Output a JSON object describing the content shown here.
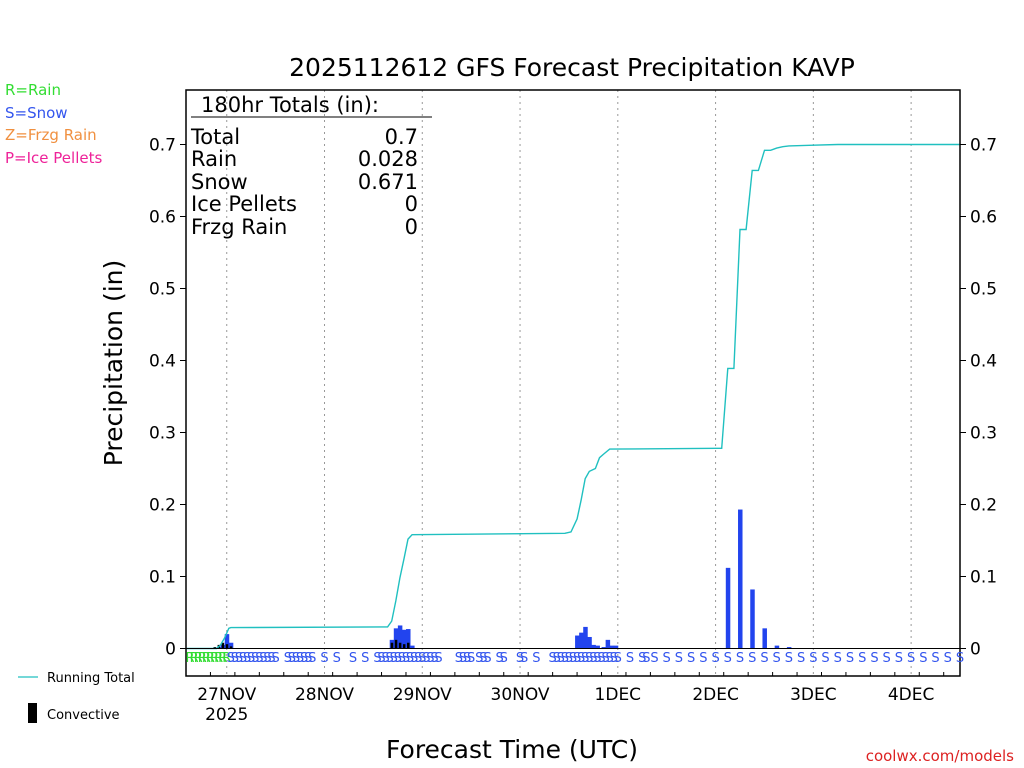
{
  "chart_data": {
    "type": "bar",
    "title": "2025112612 GFS Forecast Precipitation KAVP",
    "xlabel": "Forecast Time (UTC)",
    "ylabel": "Precipitation (in)",
    "ylim": [
      0,
      0.77
    ],
    "yticks": [
      0,
      0.1,
      0.2,
      0.3,
      0.4,
      0.5,
      0.6,
      0.7
    ],
    "ytick_labels": [
      "0",
      "0.1",
      "0.2",
      "0.3",
      "0.4",
      "0.5",
      "0.6",
      "0.7"
    ],
    "xlim_hours": [
      -10,
      180
    ],
    "x_unit": "hours after 2025-11-27 00 UTC",
    "xticks": [
      {
        "hour": 0,
        "label": "27NOV",
        "sublabel": "2025"
      },
      {
        "hour": 24,
        "label": "28NOV",
        "sublabel": ""
      },
      {
        "hour": 48,
        "label": "29NOV",
        "sublabel": ""
      },
      {
        "hour": 72,
        "label": "30NOV",
        "sublabel": ""
      },
      {
        "hour": 96,
        "label": "1DEC",
        "sublabel": ""
      },
      {
        "hour": 120,
        "label": "2DEC",
        "sublabel": ""
      },
      {
        "hour": 144,
        "label": "3DEC",
        "sublabel": ""
      },
      {
        "hour": 168,
        "label": "4DEC",
        "sublabel": ""
      }
    ],
    "grid": "dotted vertical at day boundaries",
    "legend": {
      "left_types": [
        "R=Rain",
        "S=Snow",
        "Z=Frzg Rain",
        "P=Ice Pellets"
      ],
      "left_type_colors": [
        "#33dd33",
        "#3355ee",
        "#f09040",
        "#ee2299"
      ],
      "bottom": [
        "Running Total",
        "Convective"
      ]
    },
    "totals": {
      "header": "180hr Totals (in):",
      "rows": [
        {
          "label": "Total",
          "value": "0.7"
        },
        {
          "label": "Rain",
          "value": "0.028"
        },
        {
          "label": "Snow",
          "value": "0.671"
        },
        {
          "label": "Ice Pellets",
          "value": "0"
        },
        {
          "label": "Frzg Rain",
          "value": "0"
        }
      ]
    },
    "series": [
      {
        "name": "Period Precipitation",
        "color": "#2244ee",
        "points": [
          [
            -2,
            0.002
          ],
          [
            -1,
            0.005
          ],
          [
            0,
            0.02
          ],
          [
            1,
            0.008
          ],
          [
            40.5,
            0.012
          ],
          [
            41.5,
            0.028
          ],
          [
            42.5,
            0.032
          ],
          [
            43.5,
            0.026
          ],
          [
            44.5,
            0.027
          ],
          [
            45.5,
            0.004
          ],
          [
            86,
            0.018
          ],
          [
            87,
            0.022
          ],
          [
            88,
            0.03
          ],
          [
            89,
            0.016
          ],
          [
            90,
            0.005
          ],
          [
            91,
            0.004
          ],
          [
            92.5,
            0.002
          ],
          [
            93.5,
            0.012
          ],
          [
            94.5,
            0.004
          ],
          [
            95.5,
            0.004
          ],
          [
            123,
            0.112
          ],
          [
            126,
            0.193
          ],
          [
            129,
            0.082
          ],
          [
            132,
            0.028
          ],
          [
            135,
            0.004
          ],
          [
            138,
            0.002
          ]
        ]
      },
      {
        "name": "Convective",
        "color": "#000000",
        "points": [
          [
            -3,
            0.002
          ],
          [
            -2,
            0.005
          ],
          [
            -1,
            0.008
          ],
          [
            0,
            0.006
          ],
          [
            1,
            0.003
          ],
          [
            40.5,
            0.008
          ],
          [
            41.5,
            0.012
          ],
          [
            42.5,
            0.008
          ],
          [
            43.5,
            0.006
          ],
          [
            44.5,
            0.008
          ]
        ]
      },
      {
        "name": "Running Total",
        "color": "#20c0c0",
        "points": [
          [
            -10,
            0
          ],
          [
            -2.5,
            0
          ],
          [
            -1.5,
            0.005
          ],
          [
            -0.5,
            0.015
          ],
          [
            0.5,
            0.028
          ],
          [
            1,
            0.029
          ],
          [
            39.5,
            0.03
          ],
          [
            40.5,
            0.038
          ],
          [
            41.5,
            0.066
          ],
          [
            42.5,
            0.098
          ],
          [
            43.5,
            0.124
          ],
          [
            44.5,
            0.152
          ],
          [
            45.5,
            0.158
          ],
          [
            83,
            0.16
          ],
          [
            84.5,
            0.162
          ],
          [
            86,
            0.18
          ],
          [
            87,
            0.206
          ],
          [
            88,
            0.236
          ],
          [
            89,
            0.246
          ],
          [
            90.5,
            0.25
          ],
          [
            91.5,
            0.265
          ],
          [
            92.5,
            0.27
          ],
          [
            94,
            0.277
          ],
          [
            120,
            0.278
          ],
          [
            121.5,
            0.278
          ],
          [
            123,
            0.389
          ],
          [
            124.5,
            0.389
          ],
          [
            126,
            0.582
          ],
          [
            127.5,
            0.582
          ],
          [
            129,
            0.664
          ],
          [
            130.5,
            0.664
          ],
          [
            132,
            0.692
          ],
          [
            133.5,
            0.692
          ],
          [
            135,
            0.695
          ],
          [
            136.5,
            0.697
          ],
          [
            138,
            0.698
          ],
          [
            144,
            0.699
          ],
          [
            150,
            0.7
          ],
          [
            180,
            0.7
          ]
        ]
      }
    ],
    "ptype_strip": [
      {
        "start": -11,
        "end": 0.5,
        "step": 1,
        "letter": "R",
        "color": "#33dd33"
      },
      {
        "start": 1,
        "end": 12,
        "step": 1,
        "letter": "S",
        "color": "#3355ee"
      },
      {
        "start": 15,
        "end": 21,
        "step": 1,
        "letter": "S",
        "color": "#3355ee"
      },
      {
        "start": 24,
        "end": 27,
        "step": 3,
        "letter": "S",
        "color": "#3355ee"
      },
      {
        "start": 31,
        "end": 34,
        "step": 3,
        "letter": "S",
        "color": "#3355ee"
      },
      {
        "start": 37,
        "end": 46,
        "step": 1,
        "letter": "S",
        "color": "#3355ee"
      },
      {
        "start": 47,
        "end": 52,
        "step": 1,
        "letter": "S",
        "color": "#3355ee"
      },
      {
        "start": 57,
        "end": 60,
        "step": 1,
        "letter": "S",
        "color": "#3355ee"
      },
      {
        "start": 62,
        "end": 64,
        "step": 1,
        "letter": "S",
        "color": "#3355ee"
      },
      {
        "start": 67,
        "end": 68,
        "step": 1,
        "letter": "S",
        "color": "#3355ee"
      },
      {
        "start": 72,
        "end": 73,
        "step": 1,
        "letter": "S",
        "color": "#3355ee"
      },
      {
        "start": 76,
        "end": 76,
        "step": 1,
        "letter": "S",
        "color": "#3355ee"
      },
      {
        "start": 80,
        "end": 96,
        "step": 1,
        "letter": "S",
        "color": "#3355ee"
      },
      {
        "start": 99,
        "end": 99,
        "step": 1,
        "letter": "S",
        "color": "#3355ee"
      },
      {
        "start": 102,
        "end": 103,
        "step": 1,
        "letter": "S",
        "color": "#3355ee"
      },
      {
        "start": 105,
        "end": 117,
        "step": 3,
        "letter": "S",
        "color": "#3355ee"
      },
      {
        "start": 120,
        "end": 180,
        "step": 3,
        "letter": "S",
        "color": "#3355ee"
      }
    ]
  },
  "legend_labels": {
    "running_total": "Running Total",
    "convective": "Convective"
  },
  "credit": "coolwx.com/models"
}
